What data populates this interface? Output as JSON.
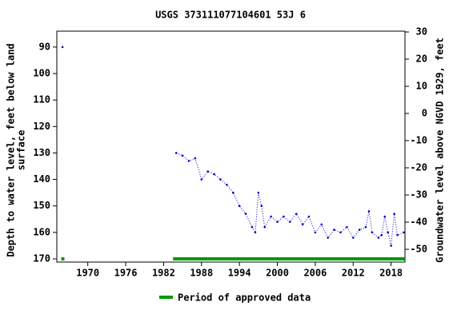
{
  "chart_data": {
    "type": "line",
    "title": "USGS 373111077104601 53J  6",
    "ylabel": [
      "Depth to water level, feet below land",
      "surface"
    ],
    "y2label": "Groundwater level above NGVD 1929, feet",
    "xlim": [
      1965.1,
      2020.2
    ],
    "xticks": [
      1970,
      1976,
      1982,
      1988,
      1994,
      2000,
      2006,
      2012,
      2018
    ],
    "ylim": [
      84,
      171.2
    ],
    "yticks": [
      90,
      100,
      110,
      120,
      130,
      140,
      150,
      160,
      170
    ],
    "y2lim": [
      30.3,
      -54.7
    ],
    "y2ticks": [
      30,
      20,
      10,
      0,
      -10,
      -20,
      -30,
      -40,
      -50
    ],
    "series": [
      {
        "color": "#0000cc",
        "x": [
          1966
        ],
        "values": [
          90
        ]
      },
      {
        "color": "#0000cc",
        "x": [
          1984,
          1985,
          1986,
          1987,
          1988,
          1989,
          1990,
          1991,
          1992,
          1993,
          1994,
          1995,
          1996,
          1996.5,
          1997,
          1997.5,
          1998,
          1999,
          2000,
          2001,
          2002,
          2003,
          2004,
          2005,
          2006,
          2007,
          2008,
          2009,
          2010,
          2011,
          2012,
          2013,
          2014,
          2014.5,
          2015,
          2016,
          2016.5,
          2017,
          2017.5,
          2018,
          2018.5,
          2019,
          2020
        ],
        "values": [
          130,
          131,
          133,
          132,
          140,
          137,
          138,
          140,
          142,
          145,
          150,
          153,
          158,
          160,
          145,
          150,
          158,
          154,
          156,
          154,
          156,
          153,
          157,
          154,
          160,
          157,
          162,
          159,
          160,
          158,
          162,
          159,
          158,
          152,
          160,
          162,
          161,
          154,
          160,
          165,
          153,
          161,
          160
        ]
      }
    ],
    "approved_periods": [
      [
        1965.8,
        1966.3
      ],
      [
        1983.5,
        2020.2
      ]
    ],
    "approved_color": "#009900",
    "legend": "Period of approved data"
  }
}
